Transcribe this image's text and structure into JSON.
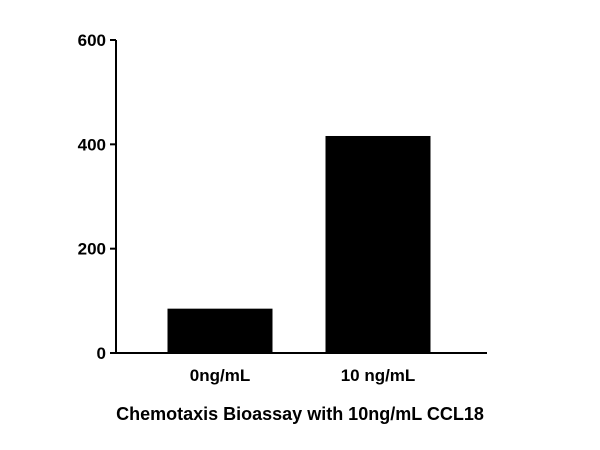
{
  "chart_data": {
    "type": "bar",
    "categories": [
      "0ng/mL",
      "10 ng/mL"
    ],
    "values": [
      85,
      416
    ],
    "title": "",
    "xlabel": "Chemotaxis Bioassay with 10ng/mL CCL18",
    "ylabel": "",
    "ylim": [
      0,
      600
    ],
    "yticks": [
      0,
      200,
      400,
      600
    ],
    "yticks_labels": [
      "0",
      "200",
      "400",
      "600"
    ],
    "grid": false,
    "legend": "none",
    "bar_color": "#000000"
  }
}
